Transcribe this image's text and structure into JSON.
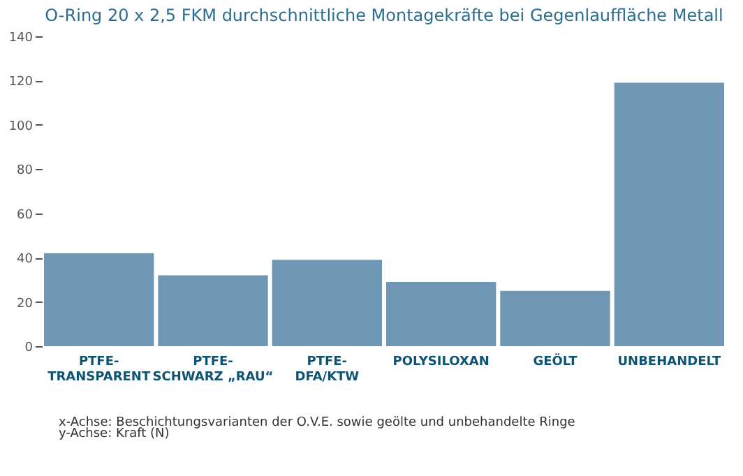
{
  "chart_data": {
    "type": "bar",
    "title": "O-Ring 20 x 2,5 FKM durchschnittliche Montagekräfte bei Gegenlauffläche Metall",
    "categories": [
      "PTFE-\nTRANSPARENT",
      "PTFE-\nSCHWARZ „RAU“",
      "PTFE-\nDFA/KTW",
      "POLYSILOXAN",
      "GEÖLT",
      "UNBEHANDELT"
    ],
    "values": [
      42,
      32,
      39,
      29,
      25,
      119
    ],
    "color": "#6f97b4",
    "ylim": [
      0,
      140
    ],
    "yticks": [
      0,
      20,
      40,
      60,
      80,
      100,
      120,
      140
    ],
    "grid": false,
    "annotations": [
      "x-Achse:   Beschichtungsvarianten der O.V.E. sowie geölte und unbehandelte Ringe",
      "y-Achse:   Kraft (N)"
    ]
  }
}
